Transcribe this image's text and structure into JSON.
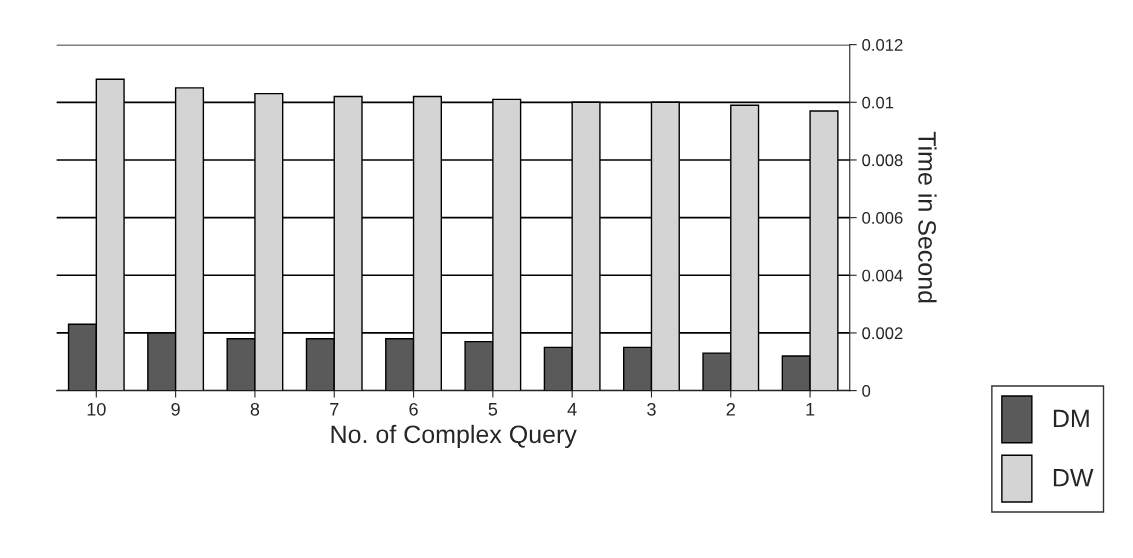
{
  "chart_data": {
    "type": "bar",
    "xlabel": "No. of Complex Query",
    "ylabel": "Time in Second",
    "categories": [
      "10",
      "9",
      "8",
      "7",
      "6",
      "5",
      "4",
      "3",
      "2",
      "1"
    ],
    "series": [
      {
        "name": "DM",
        "color": "#5a5a5a",
        "values": [
          0.0023,
          0.002,
          0.0018,
          0.0018,
          0.0018,
          0.0017,
          0.0015,
          0.0015,
          0.0013,
          0.0012
        ]
      },
      {
        "name": "DW",
        "color": "#d4d4d4",
        "values": [
          0.0108,
          0.0105,
          0.0103,
          0.0102,
          0.0102,
          0.0101,
          0.01,
          0.01,
          0.0099,
          0.0097
        ]
      }
    ],
    "ylim": [
      0,
      0.012
    ],
    "yticks": [
      0,
      0.002,
      0.004,
      0.006,
      0.008,
      0.01,
      0.012
    ],
    "grid": "y",
    "legend": "bottom right"
  }
}
